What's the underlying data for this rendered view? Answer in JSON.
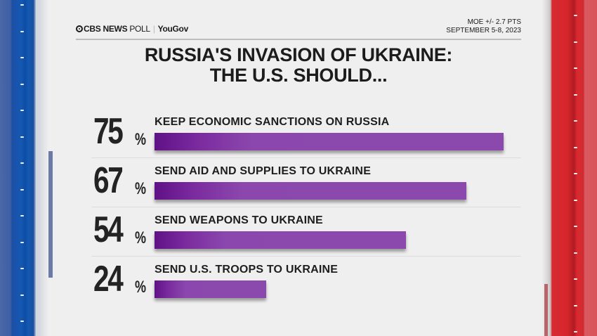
{
  "header": {
    "brand_cbs": "CBS NEWS",
    "brand_poll": " POLL",
    "brand_separator": "|",
    "brand_partner": "YouGov",
    "moe": "MOE +/- 2.7 PTS",
    "dates": "SEPTEMBER 5-8, 2023"
  },
  "title": {
    "line1": "RUSSIA'S INVASION OF UKRAINE:",
    "line2": "THE U.S. SHOULD..."
  },
  "colors": {
    "bar_dark": "#5f1186",
    "bar_light": "#8b49ad",
    "left_rail": "#1458b5",
    "right_rail": "#d8262d"
  },
  "rows": [
    {
      "value": "75",
      "unit": "%",
      "label": "KEEP ECONOMIC SANCTIONS ON RUSSIA"
    },
    {
      "value": "67",
      "unit": "%",
      "label": "SEND AID AND SUPPLIES TO UKRAINE"
    },
    {
      "value": "54",
      "unit": "%",
      "label": "SEND WEAPONS TO UKRAINE"
    },
    {
      "value": "24",
      "unit": "%",
      "label": "SEND U.S. TROOPS TO UKRAINE"
    }
  ],
  "chart_data": {
    "type": "bar",
    "orientation": "horizontal",
    "title": "RUSSIA'S INVASION OF UKRAINE: THE U.S. SHOULD...",
    "categories": [
      "KEEP ECONOMIC SANCTIONS ON RUSSIA",
      "SEND AID AND SUPPLIES TO UKRAINE",
      "SEND WEAPONS TO UKRAINE",
      "SEND U.S. TROOPS TO UKRAINE"
    ],
    "values": [
      75,
      67,
      54,
      24
    ],
    "unit": "%",
    "source": "CBS NEWS POLL | YouGov",
    "annotations": [
      "MOE +/- 2.7 PTS",
      "SEPTEMBER 5-8, 2023"
    ],
    "xlabel": "",
    "ylabel": "",
    "grid": false,
    "legend": "none"
  }
}
